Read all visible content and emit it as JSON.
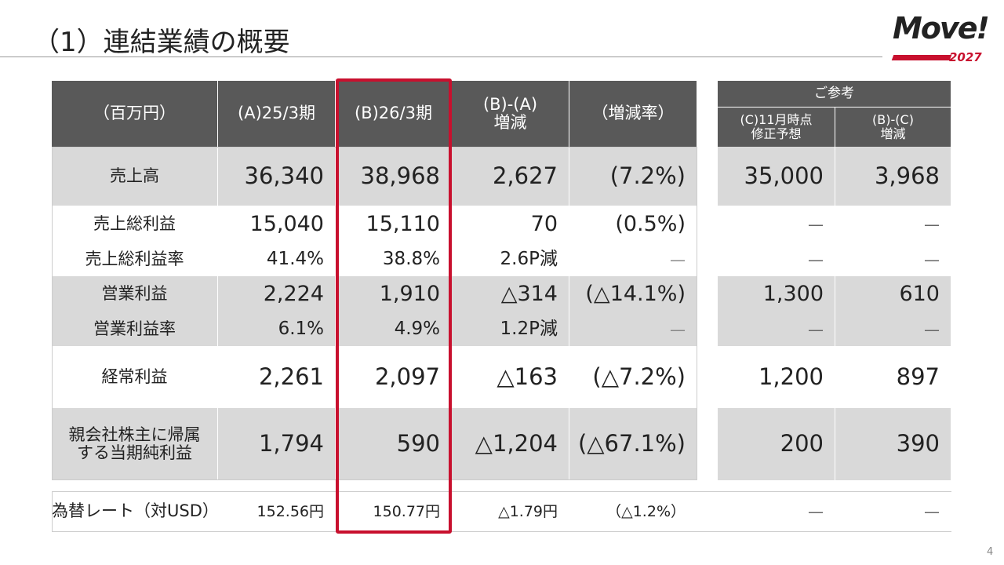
{
  "header": {
    "title": "（1）連結業績の概要",
    "logo": "Move!",
    "logo_year": "2027"
  },
  "table": {
    "columns": [
      "（百万円）",
      "(A)25/3期",
      "(B)26/3期",
      "(B)-(A)\n増減",
      "（増減率）"
    ],
    "reference": {
      "title": "ご参考",
      "columns": [
        "(C)11月時点\n修正予想",
        "(B)-(C)\n増減"
      ]
    },
    "rows": [
      {
        "cells": [
          "売上高",
          "36,340",
          "38,968",
          "2,627",
          "(7.2%)"
        ],
        "ref": [
          "35,000",
          "3,968"
        ]
      },
      {
        "cells": [
          "売上総利益",
          "15,040",
          "15,110",
          "70",
          "(0.5%)"
        ],
        "ref": [
          "—",
          "—"
        ]
      },
      {
        "cells": [
          "売上総利益率",
          "41.4%",
          "38.8%",
          "2.6P減",
          "—"
        ],
        "ref": [
          "—",
          "—"
        ]
      },
      {
        "cells": [
          "営業利益",
          "2,224",
          "1,910",
          "△314",
          "(△14.1%)"
        ],
        "ref": [
          "1,300",
          "610"
        ]
      },
      {
        "cells": [
          "営業利益率",
          "6.1%",
          "4.9%",
          "1.2P減",
          "—"
        ],
        "ref": [
          "—",
          "—"
        ]
      },
      {
        "cells": [
          "経常利益",
          "2,261",
          "2,097",
          "△163",
          "(△7.2%)"
        ],
        "ref": [
          "1,200",
          "897"
        ]
      },
      {
        "cells": [
          "親会社株主に帰属\nする当期純利益",
          "1,794",
          "590",
          "△1,204",
          "(△67.1%)"
        ],
        "ref": [
          "200",
          "390"
        ]
      }
    ],
    "fx": {
      "cells": [
        "為替レート（対USD）",
        "152.56円",
        "150.77円",
        "△1.79円",
        "（△1.2%）"
      ],
      "ref": [
        "—",
        "—"
      ]
    }
  },
  "page_number": "4"
}
